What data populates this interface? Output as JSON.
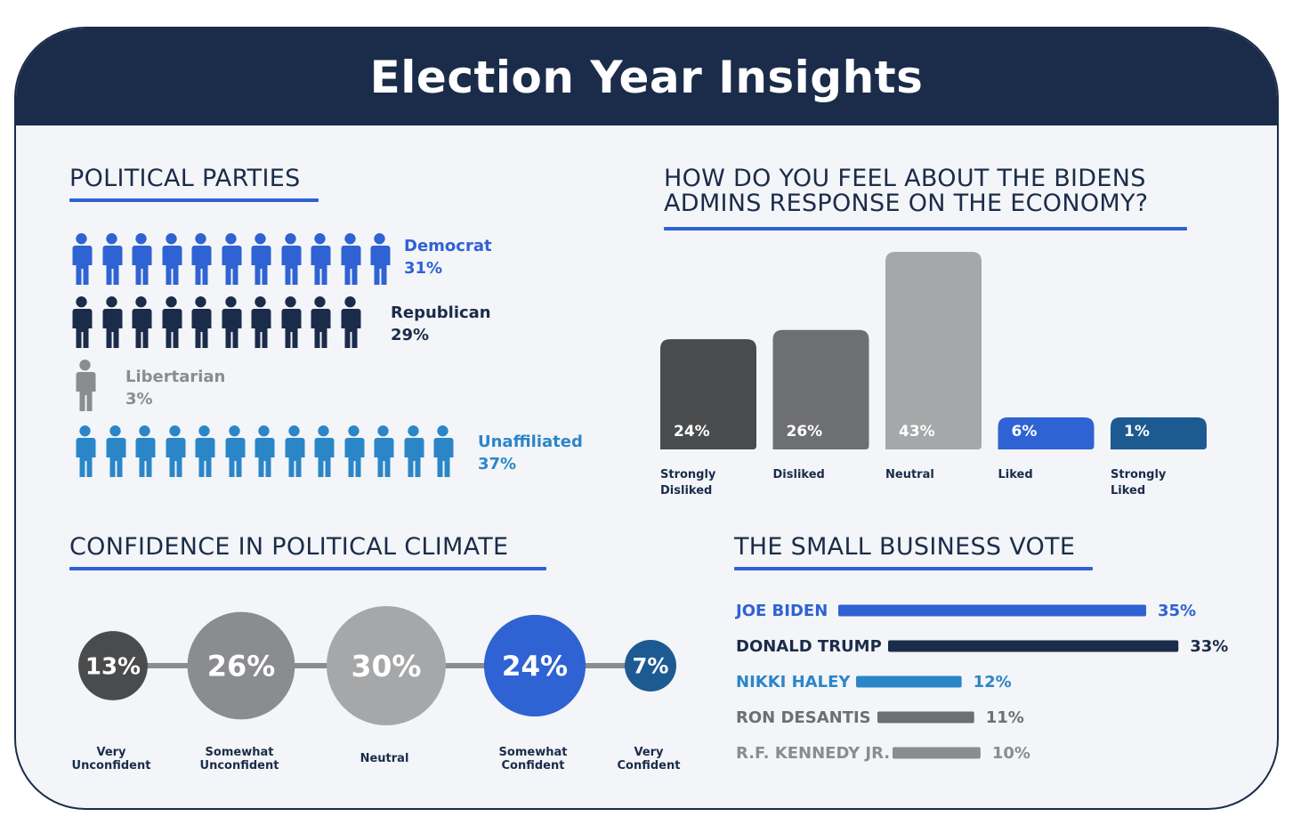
{
  "title": "Election Year Insights",
  "colors": {
    "navy": "#1b2c4a",
    "blue": "#2f62d2",
    "sky": "#2b86c8",
    "gray": "#8a8c8f",
    "darkgray": "#4a4b4d",
    "midgray": "#6e6f72",
    "lightgray": "#a6a7a9",
    "steelblue": "#1d5a92"
  },
  "sections": {
    "parties": "POLITICAL PARTIES",
    "economy": "HOW DO YOU FEEL ABOUT THE BIDENS ADMINS RESPONSE ON THE ECONOMY?",
    "confidence": "CONFIDENCE IN POLITICAL CLIMATE",
    "business": "THE SMALL BUSINESS VOTE"
  },
  "chart_data": [
    {
      "type": "pictogram",
      "title": "POLITICAL PARTIES",
      "categories": [
        "Democrat",
        "Republican",
        "Libertarian",
        "Unaffiliated"
      ],
      "values": [
        31,
        29,
        3,
        37
      ],
      "labels": [
        "31%",
        "29%",
        "3%",
        "37%"
      ],
      "icon_counts": [
        11,
        10,
        1,
        13
      ],
      "colors": [
        "#2f62d2",
        "#1b2c4a",
        "#8a8c8f",
        "#2b86c8"
      ],
      "icon": "person-icon"
    },
    {
      "type": "bar",
      "title": "HOW DO YOU FEEL ABOUT THE BIDENS ADMINS RESPONSE ON THE ECONOMY?",
      "categories": [
        "Strongly Disliked",
        "Disliked",
        "Neutral",
        "Liked",
        "Strongly Liked"
      ],
      "category_lines": [
        [
          "Strongly",
          "Disliked"
        ],
        [
          "Disliked"
        ],
        [
          "Neutral"
        ],
        [
          "Liked"
        ],
        [
          "Strongly",
          "Liked"
        ]
      ],
      "values": [
        24,
        26,
        43,
        6,
        1
      ],
      "labels": [
        "24%",
        "26%",
        "43%",
        "6%",
        "1%"
      ],
      "colors": [
        "#4a4b4d",
        "#6e6f72",
        "#a6a7a9",
        "#2f62d2",
        "#1d5a92"
      ]
    },
    {
      "type": "bubble",
      "title": "CONFIDENCE IN POLITICAL CLIMATE",
      "categories": [
        "Very Unconfident",
        "Somewhat Unconfident",
        "Neutral",
        "Somewhat Confident",
        "Very Confident"
      ],
      "category_lines": [
        [
          "Very",
          "Unconfident"
        ],
        [
          "Somewhat",
          "Unconfident"
        ],
        [
          "Neutral"
        ],
        [
          "Somewhat",
          "Confident"
        ],
        [
          "Very",
          "Confident"
        ]
      ],
      "values": [
        13,
        26,
        30,
        24,
        7
      ],
      "labels": [
        "13%",
        "26%",
        "30%",
        "24%",
        "7%"
      ],
      "colors": [
        "#4a4b4d",
        "#8a8c8f",
        "#a6a7a9",
        "#2f62d2",
        "#1d5a92"
      ]
    },
    {
      "type": "bar",
      "orientation": "horizontal",
      "title": "THE SMALL BUSINESS VOTE",
      "categories": [
        "JOE BIDEN",
        "DONALD TRUMP",
        "NIKKI HALEY",
        "RON DESANTIS",
        "R.F. KENNEDY JR."
      ],
      "values": [
        35,
        33,
        12,
        11,
        10
      ],
      "labels": [
        "35%",
        "33%",
        "12%",
        "11%",
        "10%"
      ],
      "colors": [
        "#2f62d2",
        "#1b2c4a",
        "#2b86c8",
        "#6e6f72",
        "#8a8c8f"
      ]
    }
  ]
}
